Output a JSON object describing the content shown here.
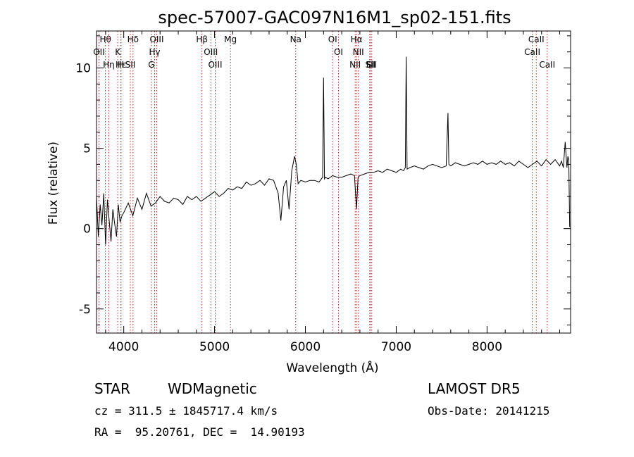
{
  "chart_data": {
    "type": "line",
    "title": "spec-57007-GAC097N16M1_sp02-151.fits",
    "xlabel": "Wavelength (Å)",
    "ylabel": "Flux (relative)",
    "xlim": [
      3700,
      8920
    ],
    "ylim": [
      -6.5,
      12.3
    ],
    "xticks": [
      4000,
      5000,
      6000,
      7000,
      8000
    ],
    "yticks": [
      -5,
      0,
      5,
      10
    ],
    "grid": false,
    "line_color": "#000000",
    "marker_color": "#b22222",
    "series": [
      {
        "x": [
          3700,
          3720,
          3740,
          3760,
          3780,
          3800,
          3820,
          3840,
          3860,
          3880,
          3900,
          3920,
          3940,
          3960,
          3980,
          4000,
          4050,
          4100,
          4150,
          4200,
          4250,
          4300,
          4350,
          4400,
          4450,
          4500,
          4550,
          4600,
          4650,
          4700,
          4750,
          4800,
          4850,
          4900,
          4950,
          5000,
          5050,
          5100,
          5150,
          5200,
          5250,
          5300,
          5350,
          5400,
          5450,
          5500,
          5550,
          5600,
          5650,
          5700,
          5730,
          5760,
          5790,
          5820,
          5850,
          5880,
          5900,
          5920,
          5950,
          6000,
          6050,
          6100,
          6150,
          6190,
          6200,
          6210,
          6220,
          6250,
          6300,
          6350,
          6400,
          6450,
          6500,
          6540,
          6563,
          6580,
          6600,
          6650,
          6700,
          6750,
          6800,
          6850,
          6900,
          6950,
          7000,
          7050,
          7080,
          7100,
          7110,
          7120,
          7150,
          7200,
          7250,
          7300,
          7350,
          7400,
          7450,
          7500,
          7550,
          7570,
          7580,
          7600,
          7650,
          7700,
          7750,
          7800,
          7850,
          7900,
          7950,
          8000,
          8050,
          8100,
          8150,
          8200,
          8250,
          8300,
          8350,
          8400,
          8450,
          8500,
          8550,
          8600,
          8650,
          8700,
          8750,
          8800,
          8820,
          8840,
          8860,
          8880,
          8890,
          8900,
          8910
        ],
        "y": [
          2.0,
          -0.5,
          1.5,
          0.2,
          2.2,
          -1.0,
          1.8,
          0.5,
          -0.8,
          1.2,
          0.3,
          -0.5,
          1.5,
          0.4,
          0.8,
          1.0,
          1.6,
          0.8,
          1.9,
          1.2,
          2.2,
          1.4,
          1.6,
          2.0,
          1.7,
          1.6,
          1.9,
          1.8,
          1.5,
          2.0,
          1.8,
          2.0,
          1.7,
          1.9,
          2.1,
          2.3,
          2.0,
          2.2,
          2.5,
          2.4,
          2.6,
          2.5,
          2.9,
          2.7,
          2.8,
          3.0,
          2.7,
          3.1,
          3.0,
          2.2,
          0.5,
          2.6,
          3.0,
          1.2,
          3.6,
          4.5,
          4.0,
          2.8,
          3.0,
          2.9,
          3.0,
          3.0,
          2.9,
          3.2,
          9.4,
          3.1,
          3.2,
          3.1,
          3.3,
          3.2,
          3.2,
          3.3,
          3.4,
          3.3,
          1.2,
          3.2,
          3.3,
          3.4,
          3.5,
          3.5,
          3.6,
          3.5,
          3.7,
          3.6,
          3.5,
          3.7,
          3.6,
          3.8,
          10.7,
          3.7,
          3.8,
          3.9,
          3.8,
          3.7,
          3.9,
          4.0,
          3.9,
          3.8,
          3.9,
          7.2,
          4.0,
          3.9,
          4.1,
          4.0,
          3.9,
          4.0,
          4.1,
          4.0,
          4.2,
          4.0,
          4.1,
          4.0,
          4.2,
          4.0,
          4.1,
          3.9,
          4.2,
          4.0,
          3.8,
          4.0,
          4.2,
          3.9,
          4.3,
          4.0,
          4.3,
          3.9,
          4.2,
          3.8,
          5.4,
          3.8,
          4.5,
          4.3,
          0.1
        ]
      }
    ],
    "lines": [
      {
        "label": "Hθ",
        "x": 3798
      },
      {
        "label": "OII",
        "x": 3727
      },
      {
        "label": "Hη",
        "x": 3835
      },
      {
        "label": "K",
        "x": 3934
      },
      {
        "label": "Hε",
        "x": 3970
      },
      {
        "label": "H",
        "x": 3968
      },
      {
        "label": "Hδ",
        "x": 4102
      },
      {
        "label": "SII",
        "x": 4072
      },
      {
        "label": "OIII",
        "x": 4363
      },
      {
        "label": "Hγ",
        "x": 4340
      },
      {
        "label": "G",
        "x": 4304
      },
      {
        "label": "Hβ",
        "x": 4861
      },
      {
        "label": "OIII",
        "x": 4959
      },
      {
        "label": "OIII",
        "x": 5007
      },
      {
        "label": "Mg",
        "x": 5175
      },
      {
        "label": "Na",
        "x": 5893
      },
      {
        "label": "OI",
        "x": 6300
      },
      {
        "label": "OI",
        "x": 6364
      },
      {
        "label": "Hα",
        "x": 6563
      },
      {
        "label": "NII",
        "x": 6548
      },
      {
        "label": "NII",
        "x": 6583
      },
      {
        "label": "SII",
        "x": 6716
      },
      {
        "label": "Li",
        "x": 6708
      },
      {
        "label": "SII",
        "x": 6731
      },
      {
        "label": "CaII",
        "x": 8542
      },
      {
        "label": "CaII",
        "x": 8498
      },
      {
        "label": "CaII",
        "x": 8662
      }
    ]
  },
  "info": {
    "class_label": "STAR",
    "subclass": "WDMagnetic",
    "survey": "LAMOST DR5",
    "cz_line": "cz = 311.5 ± 1845717.4 km/s",
    "obs_date": "Obs-Date: 20141215",
    "radec": "RA =  95.20761, DEC =  14.90193"
  }
}
